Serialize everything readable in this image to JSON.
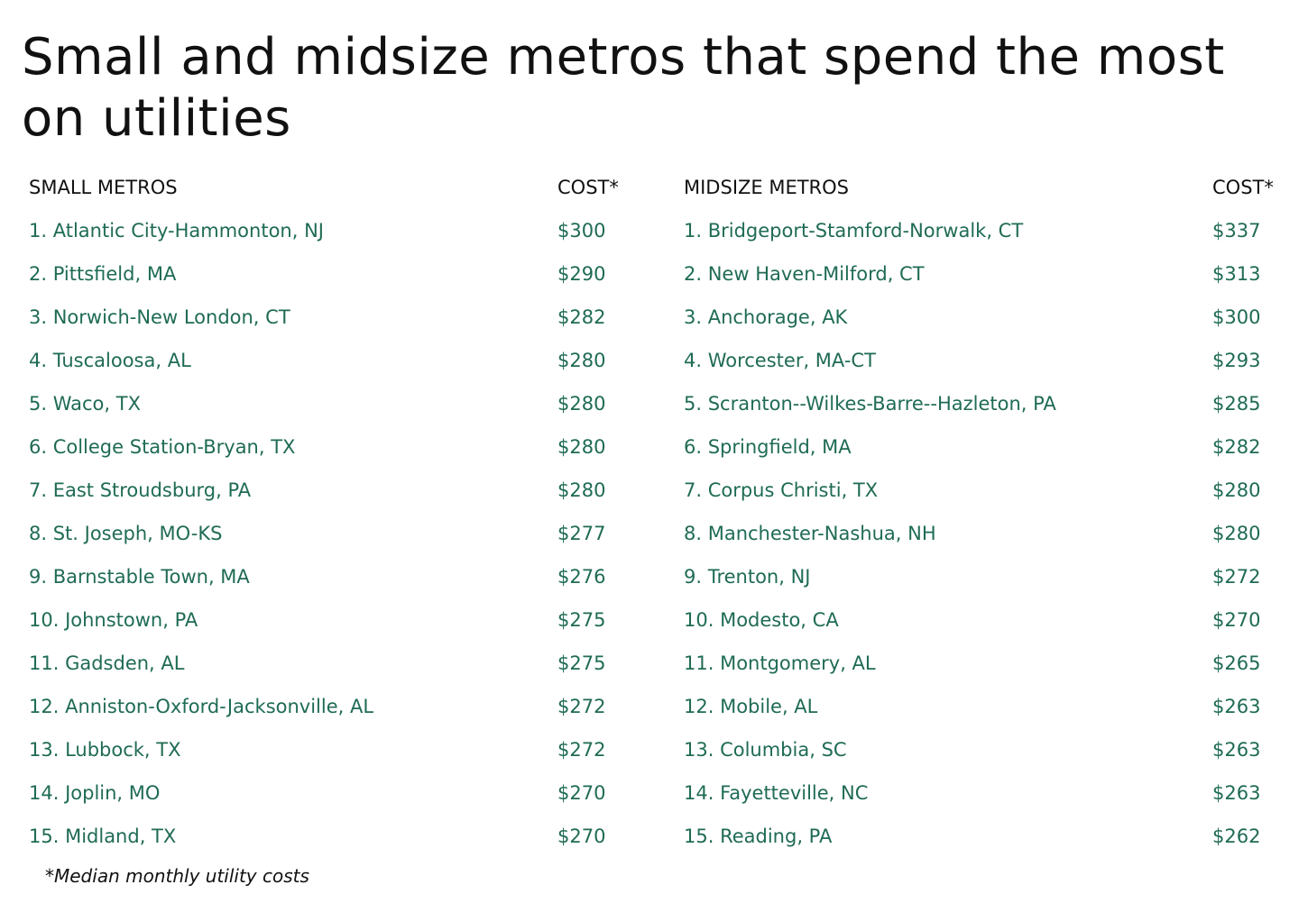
{
  "title": "Small and midsize metros that spend the most on utilities",
  "small": {
    "header": "SMALL METROS",
    "cost_header": "COST*",
    "rows": [
      {
        "name": "1. Atlantic City-Hammonton, NJ",
        "cost": "$300"
      },
      {
        "name": "2. Pittsfield, MA",
        "cost": "$290"
      },
      {
        "name": "3. Norwich-New London, CT",
        "cost": "$282"
      },
      {
        "name": "4. Tuscaloosa, AL",
        "cost": "$280"
      },
      {
        "name": "5. Waco, TX",
        "cost": "$280"
      },
      {
        "name": "6. College Station-Bryan, TX",
        "cost": "$280"
      },
      {
        "name": "7. East Stroudsburg, PA",
        "cost": "$280"
      },
      {
        "name": "8. St. Joseph, MO-KS",
        "cost": "$277"
      },
      {
        "name": "9. Barnstable Town, MA",
        "cost": "$276"
      },
      {
        "name": "10. Johnstown, PA",
        "cost": "$275"
      },
      {
        "name": "11. Gadsden, AL",
        "cost": "$275"
      },
      {
        "name": "12. Anniston-Oxford-Jacksonville, AL",
        "cost": "$272"
      },
      {
        "name": "13. Lubbock, TX",
        "cost": "$272"
      },
      {
        "name": "14. Joplin, MO",
        "cost": "$270"
      },
      {
        "name": "15. Midland, TX",
        "cost": "$270"
      }
    ]
  },
  "mid": {
    "header": "MIDSIZE METROS",
    "cost_header": "COST*",
    "rows": [
      {
        "name": "1. Bridgeport-Stamford-Norwalk, CT",
        "cost": "$337"
      },
      {
        "name": "2. New Haven-Milford, CT",
        "cost": "$313"
      },
      {
        "name": "3. Anchorage, AK",
        "cost": "$300"
      },
      {
        "name": "4. Worcester, MA-CT",
        "cost": "$293"
      },
      {
        "name": "5. Scranton--Wilkes-Barre--Hazleton, PA",
        "cost": "$285"
      },
      {
        "name": "6. Springfield, MA",
        "cost": "$282"
      },
      {
        "name": "7. Corpus Christi, TX",
        "cost": "$280"
      },
      {
        "name": "8. Manchester-Nashua, NH",
        "cost": "$280"
      },
      {
        "name": "9. Trenton, NJ",
        "cost": "$272"
      },
      {
        "name": "10. Modesto, CA",
        "cost": "$270"
      },
      {
        "name": "11. Montgomery, AL",
        "cost": "$265"
      },
      {
        "name": "12. Mobile, AL",
        "cost": "$263"
      },
      {
        "name": "13. Columbia, SC",
        "cost": "$263"
      },
      {
        "name": "14. Fayetteville, NC",
        "cost": "$263"
      },
      {
        "name": "15. Reading, PA",
        "cost": "$262"
      }
    ]
  },
  "footnote": "*Median monthly utility costs",
  "colors": {
    "accent": "#1f6b55",
    "text": "#111111"
  }
}
